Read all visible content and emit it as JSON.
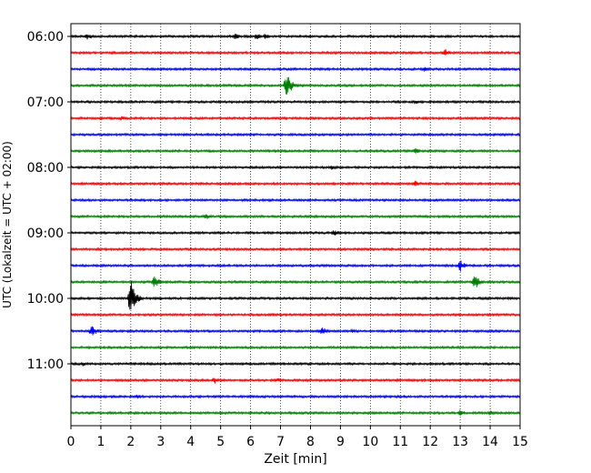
{
  "chart_data": {
    "type": "line",
    "title": "",
    "xlabel": "Zeit  [min]",
    "ylabel": "UTC (Lokalzeit = UTC + 02:00)",
    "xlim": [
      0,
      15
    ],
    "x_ticks": [
      "0",
      "1",
      "2",
      "3",
      "4",
      "5",
      "6",
      "7",
      "8",
      "9",
      "10",
      "11",
      "12",
      "13",
      "14",
      "15"
    ],
    "y_ticks": [
      "06:00",
      "07:00",
      "08:00",
      "09:00",
      "10:00",
      "11:00"
    ],
    "vertical_grid": "dotted",
    "trace_colors": [
      "#000000",
      "#ff0000",
      "#0000ff",
      "#008000"
    ],
    "trace_count": 24,
    "start_time": "06:00",
    "trace_interval_minutes": 15,
    "events": [
      {
        "trace": 0,
        "minute": 0.55,
        "amplitude": 4
      },
      {
        "trace": 0,
        "minute": 5.5,
        "amplitude": 4
      },
      {
        "trace": 0,
        "minute": 6.2,
        "amplitude": 4
      },
      {
        "trace": 0,
        "minute": 6.5,
        "amplitude": 4
      },
      {
        "trace": 1,
        "minute": 12.5,
        "amplitude": 5
      },
      {
        "trace": 2,
        "minute": 11.8,
        "amplitude": 3
      },
      {
        "trace": 3,
        "minute": 7.2,
        "amplitude": 16
      },
      {
        "trace": 4,
        "minute": 11.5,
        "amplitude": 3
      },
      {
        "trace": 5,
        "minute": 1.7,
        "amplitude": 3
      },
      {
        "trace": 7,
        "minute": 11.5,
        "amplitude": 4
      },
      {
        "trace": 8,
        "minute": 8.7,
        "amplitude": 3
      },
      {
        "trace": 9,
        "minute": 11.5,
        "amplitude": 4
      },
      {
        "trace": 11,
        "minute": 4.5,
        "amplitude": 4
      },
      {
        "trace": 12,
        "minute": 8.8,
        "amplitude": 4
      },
      {
        "trace": 14,
        "minute": 13.0,
        "amplitude": 7
      },
      {
        "trace": 15,
        "minute": 2.8,
        "amplitude": 8
      },
      {
        "trace": 15,
        "minute": 13.5,
        "amplitude": 9
      },
      {
        "trace": 16,
        "minute": 2.0,
        "amplitude": 22
      },
      {
        "trace": 18,
        "minute": 0.7,
        "amplitude": 8
      },
      {
        "trace": 18,
        "minute": 8.4,
        "amplitude": 5
      },
      {
        "trace": 18,
        "minute": 9.4,
        "amplitude": 3
      },
      {
        "trace": 20,
        "minute": 0.4,
        "amplitude": 3
      },
      {
        "trace": 21,
        "minute": 4.8,
        "amplitude": 4
      },
      {
        "trace": 21,
        "minute": 6.9,
        "amplitude": 3
      },
      {
        "trace": 22,
        "minute": 2.2,
        "amplitude": 3
      },
      {
        "trace": 23,
        "minute": 13.0,
        "amplitude": 4
      },
      {
        "trace": 23,
        "minute": 14.0,
        "amplitude": 3
      }
    ]
  }
}
